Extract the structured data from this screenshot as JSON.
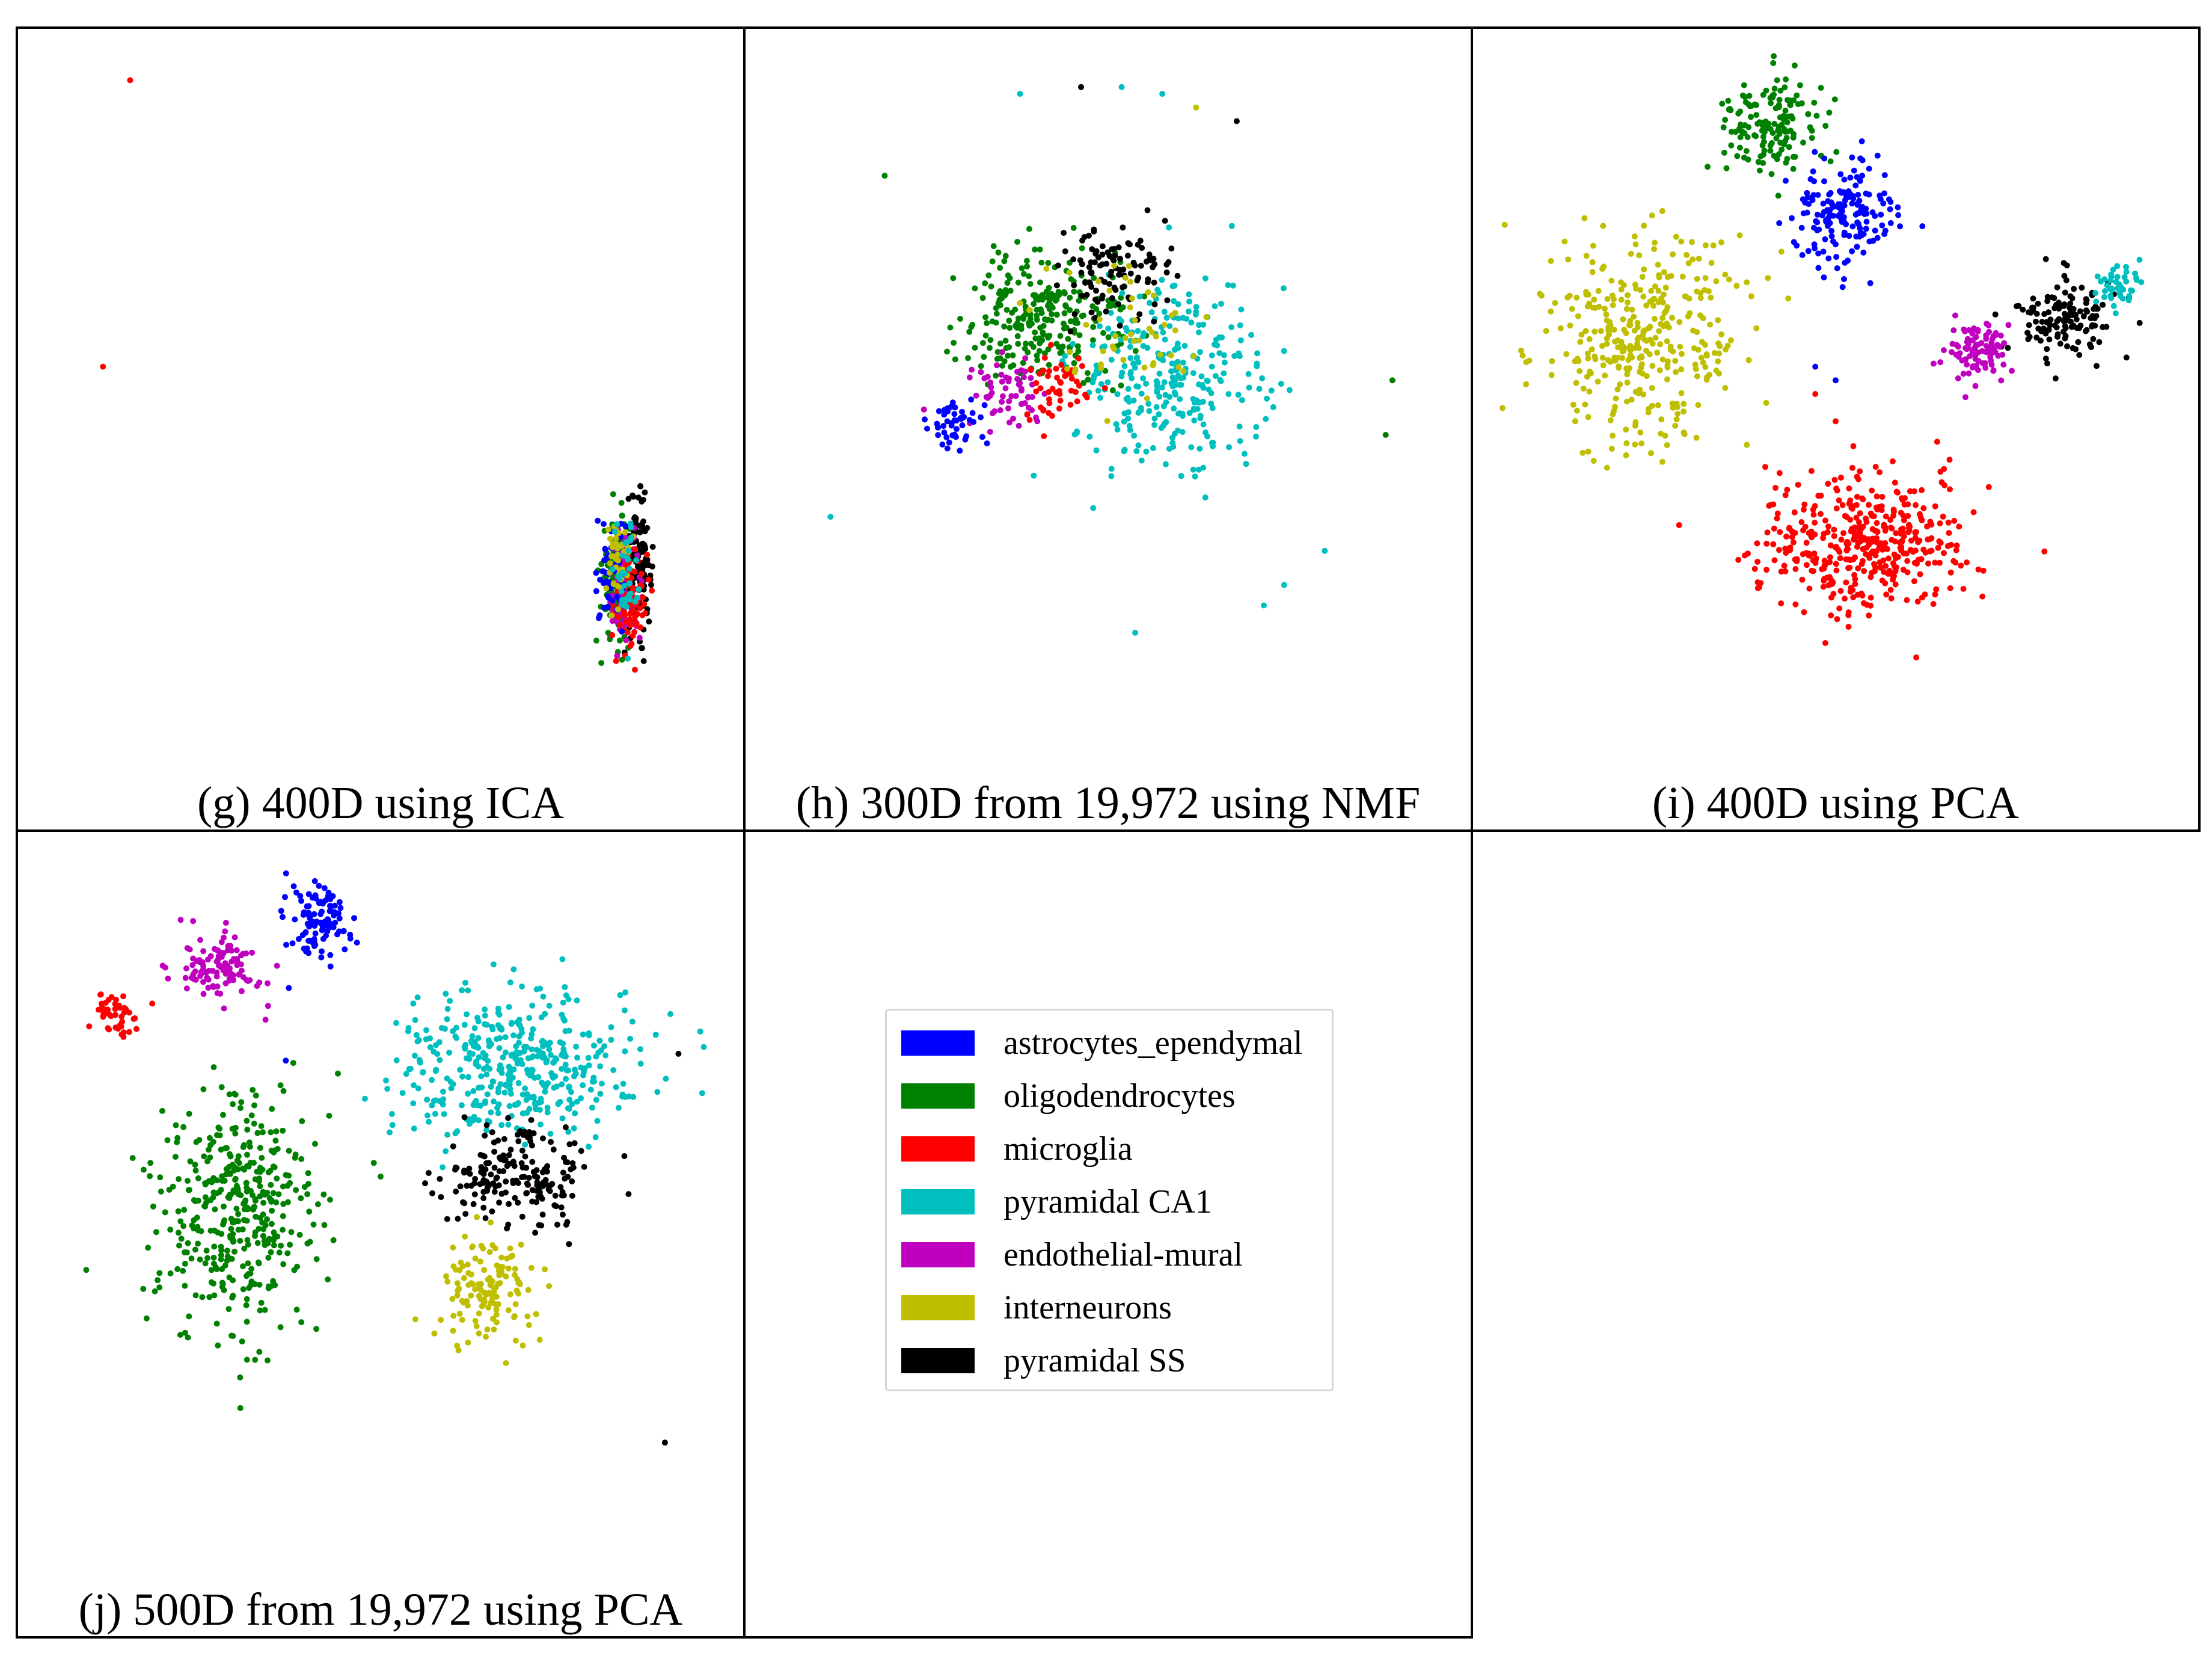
{
  "figure": {
    "legend": [
      {
        "label": "astrocytes_ependymal",
        "color": "#0000ff"
      },
      {
        "label": "oligodendrocytes",
        "color": "#008000"
      },
      {
        "label": "microglia",
        "color": "#ff0000"
      },
      {
        "label": "pyramidal CA1",
        "color": "#00bfbf"
      },
      {
        "label": "endothelial-mural",
        "color": "#bf00bf"
      },
      {
        "label": "interneurons",
        "color": "#bfbf00"
      },
      {
        "label": "pyramidal SS",
        "color": "#000000"
      }
    ]
  },
  "chart_data": [
    {
      "type": "scatter",
      "id": "g",
      "title": "(g) 400D using ICA",
      "xlabel": "",
      "ylabel": "",
      "xlim": [
        0,
        100
      ],
      "ylim": [
        0,
        100
      ],
      "grid": false,
      "clusters": [
        {
          "category": "oligodendrocytes",
          "center": [
            85,
            23
          ],
          "spread": [
            1.2,
            4.5
          ],
          "count": 140
        },
        {
          "category": "pyramidal SS",
          "center": [
            88,
            25
          ],
          "spread": [
            1.0,
            4.5
          ],
          "count": 130
        },
        {
          "category": "endothelial-mural",
          "center": [
            86,
            22
          ],
          "spread": [
            1.2,
            4
          ],
          "count": 90
        },
        {
          "category": "microglia",
          "center": [
            87,
            20
          ],
          "spread": [
            1.2,
            4
          ],
          "count": 80
        },
        {
          "category": "astrocytes_ependymal",
          "center": [
            84,
            24
          ],
          "spread": [
            1.0,
            4
          ],
          "count": 50
        },
        {
          "category": "interneurons",
          "center": [
            85,
            26
          ],
          "spread": [
            1.0,
            3.5
          ],
          "count": 40
        },
        {
          "category": "pyramidal CA1",
          "center": [
            86,
            23
          ],
          "spread": [
            1.0,
            4
          ],
          "count": 40
        }
      ],
      "outliers": [
        {
          "category": "microglia",
          "x": 13,
          "y": 96
        },
        {
          "category": "microglia",
          "x": 9,
          "y": 54
        }
      ]
    },
    {
      "type": "scatter",
      "id": "h",
      "title": "(h) 300D from 19,972 using NMF",
      "xlabel": "",
      "ylabel": "",
      "xlim": [
        0,
        100
      ],
      "ylim": [
        0,
        100
      ],
      "grid": false,
      "clusters": [
        {
          "category": "oligodendrocytes",
          "center": [
            41,
            61
          ],
          "spread": [
            6,
            5
          ],
          "count": 260
        },
        {
          "category": "pyramidal CA1",
          "center": [
            59,
            52
          ],
          "spread": [
            7,
            7
          ],
          "count": 300
        },
        {
          "category": "pyramidal SS",
          "center": [
            51,
            68
          ],
          "spread": [
            4,
            3
          ],
          "count": 110
        },
        {
          "category": "endothelial-mural",
          "center": [
            36,
            50
          ],
          "spread": [
            3,
            2.5
          ],
          "count": 60
        },
        {
          "category": "microglia",
          "center": [
            42,
            51
          ],
          "spread": [
            3,
            2.5
          ],
          "count": 50
        },
        {
          "category": "astrocytes_ependymal",
          "center": [
            27,
            46
          ],
          "spread": [
            2,
            2
          ],
          "count": 45
        },
        {
          "category": "interneurons",
          "center": [
            52,
            58
          ],
          "spread": [
            6,
            5
          ],
          "count": 50
        }
      ],
      "outliers": [
        {
          "category": "pyramidal CA1",
          "x": 37,
          "y": 94
        },
        {
          "category": "pyramidal SS",
          "x": 46,
          "y": 95
        },
        {
          "category": "pyramidal CA1",
          "x": 52,
          "y": 95
        },
        {
          "category": "pyramidal CA1",
          "x": 58,
          "y": 94
        },
        {
          "category": "interneurons",
          "x": 63,
          "y": 92
        },
        {
          "category": "pyramidal SS",
          "x": 69,
          "y": 90
        },
        {
          "category": "oligodendrocytes",
          "x": 17,
          "y": 82
        },
        {
          "category": "oligodendrocytes",
          "x": 92,
          "y": 52
        },
        {
          "category": "oligodendrocytes",
          "x": 91,
          "y": 44
        },
        {
          "category": "pyramidal CA1",
          "x": 9,
          "y": 32
        },
        {
          "category": "pyramidal CA1",
          "x": 82,
          "y": 27
        },
        {
          "category": "pyramidal CA1",
          "x": 76,
          "y": 22
        },
        {
          "category": "pyramidal CA1",
          "x": 73,
          "y": 19
        },
        {
          "category": "pyramidal CA1",
          "x": 54,
          "y": 15
        }
      ]
    },
    {
      "type": "scatter",
      "id": "i",
      "title": "(i) 400D using PCA",
      "xlabel": "",
      "ylabel": "",
      "xlim": [
        0,
        100
      ],
      "ylim": [
        0,
        100
      ],
      "grid": false,
      "clusters": [
        {
          "category": "oligodendrocytes",
          "center": [
            40,
            89
          ],
          "spread": [
            3.5,
            3.5
          ],
          "count": 150
        },
        {
          "category": "astrocytes_ependymal",
          "center": [
            51,
            76
          ],
          "spread": [
            4,
            4.5
          ],
          "count": 170
        },
        {
          "category": "interneurons",
          "center": [
            21,
            59
          ],
          "spread": [
            8,
            8
          ],
          "count": 350
        },
        {
          "category": "pyramidal SS",
          "center": [
            84,
            61
          ],
          "spread": [
            4,
            3
          ],
          "count": 140
        },
        {
          "category": "pyramidal CA1",
          "center": [
            92,
            66
          ],
          "spread": [
            2,
            1.5
          ],
          "count": 45
        },
        {
          "category": "endothelial-mural",
          "center": [
            71,
            56
          ],
          "spread": [
            2.5,
            2.5
          ],
          "count": 90
        },
        {
          "category": "microglia",
          "center": [
            54,
            28
          ],
          "spread": [
            8,
            5
          ],
          "count": 420
        }
      ],
      "outliers": [
        {
          "category": "microglia",
          "x": 47,
          "y": 50
        },
        {
          "category": "microglia",
          "x": 50,
          "y": 46
        },
        {
          "category": "astrocytes_ependymal",
          "x": 47,
          "y": 54
        },
        {
          "category": "astrocytes_ependymal",
          "x": 50,
          "y": 52
        },
        {
          "category": "interneurons",
          "x": 40,
          "y": 67
        },
        {
          "category": "interneurons",
          "x": 43,
          "y": 64
        },
        {
          "category": "microglia",
          "x": 65,
          "y": 43
        },
        {
          "category": "microglia",
          "x": 66,
          "y": 39
        }
      ]
    },
    {
      "type": "scatter",
      "id": "j",
      "title": "(j) 500D from 19,972 using PCA",
      "xlabel": "",
      "ylabel": "",
      "xlim": [
        0,
        100
      ],
      "ylim": [
        0,
        100
      ],
      "grid": false,
      "clusters": [
        {
          "category": "astrocytes_ependymal",
          "center": [
            41,
            90
          ],
          "spread": [
            2.5,
            3
          ],
          "count": 100
        },
        {
          "category": "endothelial-mural",
          "center": [
            26,
            84
          ],
          "spread": [
            3,
            2.5
          ],
          "count": 110
        },
        {
          "category": "microglia",
          "center": [
            11,
            77
          ],
          "spread": [
            1.8,
            1.6
          ],
          "count": 45
        },
        {
          "category": "pyramidal CA1",
          "center": [
            70,
            69
          ],
          "spread": [
            9,
            5.5
          ],
          "count": 420
        },
        {
          "category": "oligodendrocytes",
          "center": [
            29,
            48
          ],
          "spread": [
            6,
            9
          ],
          "count": 400
        },
        {
          "category": "pyramidal SS",
          "center": [
            70,
            53
          ],
          "spread": [
            5,
            3.5
          ],
          "count": 190
        },
        {
          "category": "interneurons",
          "center": [
            66,
            36
          ],
          "spread": [
            4,
            4
          ],
          "count": 130
        }
      ],
      "outliers": [
        {
          "category": "oligodendrocytes",
          "x": 49,
          "y": 55
        },
        {
          "category": "oligodendrocytes",
          "x": 50,
          "y": 53
        },
        {
          "category": "oligodendrocytes",
          "x": 16,
          "y": 55
        },
        {
          "category": "oligodendrocytes",
          "x": 15,
          "y": 54
        },
        {
          "category": "astrocytes_ependymal",
          "x": 36,
          "y": 70
        },
        {
          "category": "astrocytes_ependymal",
          "x": 39,
          "y": 86
        },
        {
          "category": "endothelial-mural",
          "x": 33,
          "y": 76
        },
        {
          "category": "pyramidal SS",
          "x": 92,
          "y": 14
        },
        {
          "category": "pyramidal SS",
          "x": 94,
          "y": 71
        },
        {
          "category": "pyramidal SS",
          "x": 86,
          "y": 56
        }
      ]
    }
  ]
}
